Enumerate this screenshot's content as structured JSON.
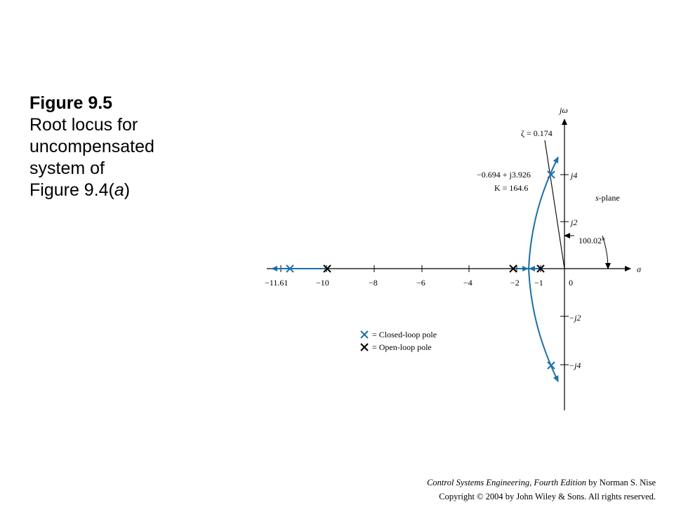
{
  "caption": {
    "figure": "Figure 9.5",
    "line1": "Root locus for",
    "line2": "uncompensated",
    "line3": "system of",
    "line4_prefix": "Figure 9.4(",
    "line4_italic": "a",
    "line4_suffix": ")"
  },
  "diagram": {
    "axis_labels": {
      "imag": "jω",
      "real": "σ"
    },
    "plane_label": {
      "italic": "s",
      "rest": "-plane"
    },
    "real_ticks": [
      "−11.61",
      "−10",
      "−8",
      "−6",
      "−4",
      "−2",
      "−1",
      "0"
    ],
    "imag_ticks": [
      "j4",
      "j2",
      "−j2",
      "−j4"
    ],
    "zeta_label": "ζ = 0.174",
    "point_label_1": "−0.694 + j3.926",
    "point_label_2": "K = 164.6",
    "angle_label": "100.02°",
    "legend": {
      "closed_loop": "= Closed-loop pole",
      "open_loop": "= Open-loop pole"
    },
    "open_loop_poles": [
      -10,
      -2,
      -1
    ],
    "closed_loop_poles": [
      "−11.61",
      "−0.694 + j3.926",
      "−0.694 − j3.926"
    ],
    "colors": {
      "locus": "#1f6fa8",
      "axis": "#000000"
    }
  },
  "credit": {
    "book_title": "Control Systems Engineering, Fourth Edition",
    "author": " by Norman S. Nise",
    "copyright": "Copyright © 2004 by John Wiley & Sons. All rights reserved."
  }
}
